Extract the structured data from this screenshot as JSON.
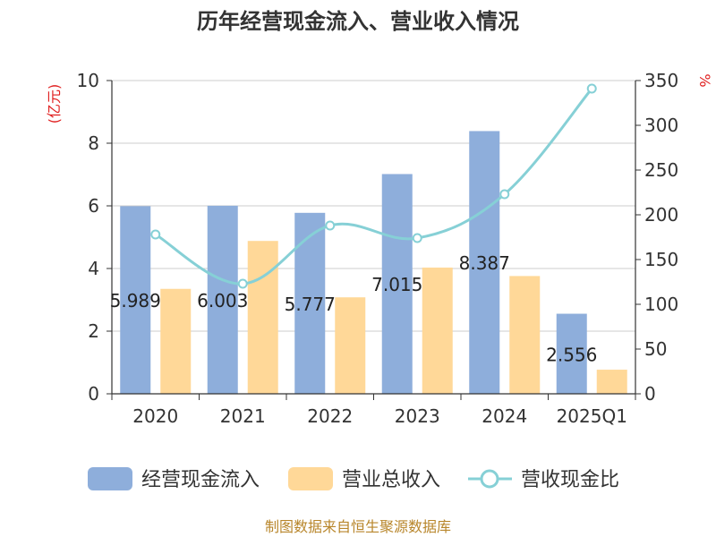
{
  "chart_data": {
    "type": "bar",
    "title": "历年经营现金流入、营业收入情况",
    "categories": [
      "2020",
      "2021",
      "2022",
      "2023",
      "2024",
      "2025Q1"
    ],
    "series": [
      {
        "name": "经营现金流入",
        "kind": "bar",
        "axis": "left",
        "color": "#8eaedb",
        "values": [
          5.989,
          6.003,
          5.777,
          7.015,
          8.387,
          2.556
        ],
        "labels": [
          "5.989",
          "6.003",
          "5.777",
          "7.015",
          "8.387",
          "2.556"
        ]
      },
      {
        "name": "营业总收入",
        "kind": "bar",
        "axis": "left",
        "color": "#ffd898",
        "values": [
          3.35,
          4.88,
          3.08,
          4.03,
          3.76,
          0.77
        ]
      },
      {
        "name": "营收现金比",
        "kind": "line",
        "axis": "right",
        "color": "#86d0d6",
        "values": [
          178,
          123,
          188,
          174,
          223,
          341
        ]
      }
    ],
    "y_left": {
      "unit": "(亿元)",
      "ylim": [
        0,
        10
      ],
      "ticks": [
        "0",
        "2",
        "4",
        "6",
        "8",
        "10"
      ]
    },
    "y_right": {
      "unit": "%",
      "ylim": [
        0,
        350
      ],
      "ticks": [
        "0",
        "50",
        "100",
        "150",
        "200",
        "250",
        "300",
        "350"
      ]
    },
    "grid": true,
    "legend": "bottom"
  },
  "source": "制图数据来自恒生聚源数据库"
}
